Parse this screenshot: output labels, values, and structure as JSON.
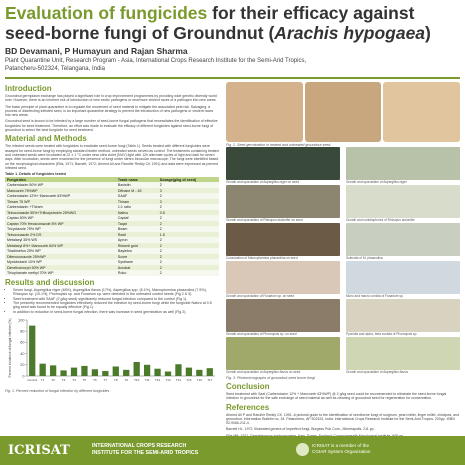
{
  "header": {
    "title_part1": "Evaluation of fungicides",
    "title_part2": " for their efficacy against seed-borne fungi of Groundnut (",
    "title_part3": "Arachis hypogaea",
    "title_part4": ")",
    "authors": "BD Devamani, P Humayun and Rajan Sharma",
    "affiliation_line1": "Plant Quarantine Unit, Research Program - Asia, International Crops Research Institute for the Semi-Arid Tropics,",
    "affiliation_line2": "Patancheru-502324, Telangana, India"
  },
  "introduction": {
    "heading": "Introduction",
    "paragraphs": [
      "Groundnut germplasm exchange has played a significant role in crop improvement programmes by providing wide genetic diversity world over. However, there is an inherent risk of introduction of new exotic pathogens or new/more virulent races of a pathogen into new areas.",
      "The basic principle of plant quarantine is to regulate the movement of seed material to mitigate the associated pest risk. Salvaging, a process of disinfecting infested seed, is an important quarantine strategy to prevent the introduction of new pathogens or virulent races into new areas.",
      "Groundnut seed is known to be infested by a large number of seed-borne fungal pathogens that necessitates the identification of effective fungicides for seed treatment. Therefore, an effort was made to evaluate the efficacy of different fungicides against seed-borne fungi of groundnut to select the best fungicide for seed treatment."
    ]
  },
  "materials": {
    "heading": "Material and Methods",
    "paragraph": "The infected seeds were treated with fungicides to eradicate seed-borne fungi (Table 1). Seeds treated with different fungicides were assayed for seed-borne fungi by employing standard blotter method, untreated seeds served as control. The treatments containing treated and untreated seeds were incubated at 22 ± 1 °C under near ultra violet (NUV) light with 12h alternate cycles of light and dark for seven days. After incubation, seeds were examined for the presence of fungi under stereo binocular microscope. The fungi were identified based on the morphological characters (Ellis, 1971; Barnett, 1972; Ahmed Ali and Randhir Reddy CK 1991) and data were expressed as percent infected seed."
  },
  "table": {
    "caption": "Table 1. Details of fungicides tested",
    "headers": [
      "Fungicides",
      "Trade name",
      "Dosage(g/kg of seed)"
    ],
    "rows": [
      [
        "Carbendazim 50% WP",
        "Bavistin",
        "2"
      ],
      [
        "Mancozeb 75%WP",
        "Dithane M - 45",
        "3"
      ],
      [
        "Carbendazim 12%+ Mancozeb 63%WP",
        "SAAF",
        "2"
      ],
      [
        "Thiram 75 WP",
        "Thiram",
        "3"
      ],
      [
        "Carbendazim +Thiram",
        "1:1 ratio",
        "2"
      ],
      [
        "Tebuconazole 50%+Trifloxystrobin 25%WG",
        "Nativo",
        "0.5"
      ],
      [
        "Captan 50% WP",
        "Captaf",
        "2"
      ],
      [
        "Captan 70% Hexaconazole 5% WP",
        "Taqat",
        "2"
      ],
      [
        "Tricyclazole 75% WP",
        "Beam",
        "2"
      ],
      [
        "Tebuconazole 2% DS",
        "Raxil",
        "1.5"
      ],
      [
        "Metalaxyl 35% WS",
        "Apron",
        "2"
      ],
      [
        "Metalaxyl 8%+ Mancozeb 64% WP",
        "Ridomil gold",
        "2"
      ],
      [
        "Triadimefon 25% WP",
        "Bayleton",
        "2"
      ],
      [
        "Difenoconazole 25%WP",
        "Score",
        "2"
      ],
      [
        "Myclobutanil 10% WP",
        "Systhane",
        "2"
      ],
      [
        "Dimethomorph 50% WP",
        "Acrobat",
        "2"
      ],
      [
        "Thiophanate methyl 70% WP",
        "Roko",
        "2"
      ]
    ]
  },
  "results": {
    "heading": "Results and discussion",
    "bullets": [
      "Seven fungi, Aspergillus niger (48%), Aspergillus flavus (17%), Aspergillus spp. (8.1%), Macrophomina phaseolina (7.5%), Rhizopus sp. (10.1%), Phomopsis sp. and Fusarium sp. were detected in the untreated control seeds (Fig 2 & 3).",
      "Seed treatment with SAAF (2 g/kg seed) significantly reduced fungal infection compared to the control (Fig 1).",
      "The presently recommended fungicides effectively reduced the infection by seed-borne fungi while the fungicide Nativo at 0.5 g/kg seed was found to be equally effective (Fig 1).",
      "In addition to reduction in seed-borne fungal infection, there was increase in seed germination as well (Fig 2)."
    ]
  },
  "chart_data": {
    "type": "bar",
    "ylabel": "Percent incidence of fungal infection (%)",
    "ylim": [
      0,
      100
    ],
    "yticks": [
      0,
      20,
      40,
      60,
      80,
      100
    ],
    "categories": [
      "Control",
      "T1",
      "T2",
      "T3",
      "T4",
      "T5",
      "T6",
      "T7",
      "T8",
      "T9",
      "T10",
      "T11",
      "T12",
      "T13",
      "T14",
      "T15",
      "T16",
      "T17"
    ],
    "values": [
      90,
      22,
      19,
      10,
      15,
      18,
      12,
      9,
      17,
      11,
      25,
      20,
      13,
      8,
      21,
      15,
      11,
      14
    ],
    "bar_color": "#4a7a2a"
  },
  "chart_caption": "Fig. 1. Percent reduction of fungal infection by different fungicides",
  "figures": {
    "fig2_caption": "Fig. 2. Seed germination in treated and untreated groundnut seed.",
    "fig3_caption": "Fig. 3. Photomicrographs of groundnut seed borne fungi",
    "panel_captions": [
      "Growth and sporulation of Aspergillus niger on seed",
      "Growth and sporulation of Aspergillus niger",
      "Growth and sporulation of Rhizopus stolonifer on seed",
      "Growth and conidiophores of Rhizopus stolonifer",
      "Colonization of Macrophomina phaseolina on seed",
      "Sclerotia of M. phaseolina",
      "Growth and sporulation of Fusarium sp. on seed",
      "Micro and macro conidia of Fusarium sp.",
      "Growth and sporulation of Phomopsis sp. on seed",
      "Pycnidia and alpha, beta conidia of Phomopsis sp.",
      "Growth and sporulation of Aspergillus flavus on seed",
      "Growth and sporulation of Aspergillus flavus"
    ],
    "panel_colors": [
      "#3a4a3a",
      "#b7c2a8",
      "#8c8670",
      "#d8dccb",
      "#6b5a45",
      "#c8cfc0",
      "#d9c8b8",
      "#d0d8e0",
      "#8a7c68",
      "#d8d2c0",
      "#a0a86a",
      "#cfd6b4"
    ],
    "fig2_colors": [
      "#d4b38c",
      "#c9a77e",
      "#e0c59e"
    ]
  },
  "conclusion": {
    "heading": "Conclusion",
    "paragraph": "Seed treatment with Saaf (Carbendazim 12% + Mancozeb 63%WP) @ 2 g/kg seed could be recommended to eliminate the seed-borne fungal infection in groundnut for the safe exchange of seed material as well as cleaning of groundnut seed for regeneration for conservation."
  },
  "references": {
    "heading": "References",
    "items": [
      "Ahmed Ali P and Randhir Reddy CK. 1991. A pictorial guide to the identification of seedborne fungi of sorghum, pearl millet, finger millet, chickpea, and groundnut. Information Bulletin no. 34. Patancheru, AP 502324, India: International Crops Research Institute for the Semi-Arid Tropics. 200pp. ISBN 92-9066-211-4.",
      "Barnett HL. 1972. Illustrated genera of imperfect fungi. Burgess Pub Com., Minneapolis. 211 pp.",
      "Ellis MB. 1971. Dematiaceous hyphomycetes. Kew, Surrey, England: Commonwealth Mycological Institute. 608 pp."
    ]
  },
  "footer": {
    "logo": "ICRISAT",
    "inst_line1": "INTERNATIONAL CROPS RESEARCH",
    "inst_line2": "INSTITUTE FOR THE SEMI-ARID TROPICS",
    "ext_line1": "ICRISAT is a member of the",
    "ext_line2": "CGIAR System Organization"
  }
}
